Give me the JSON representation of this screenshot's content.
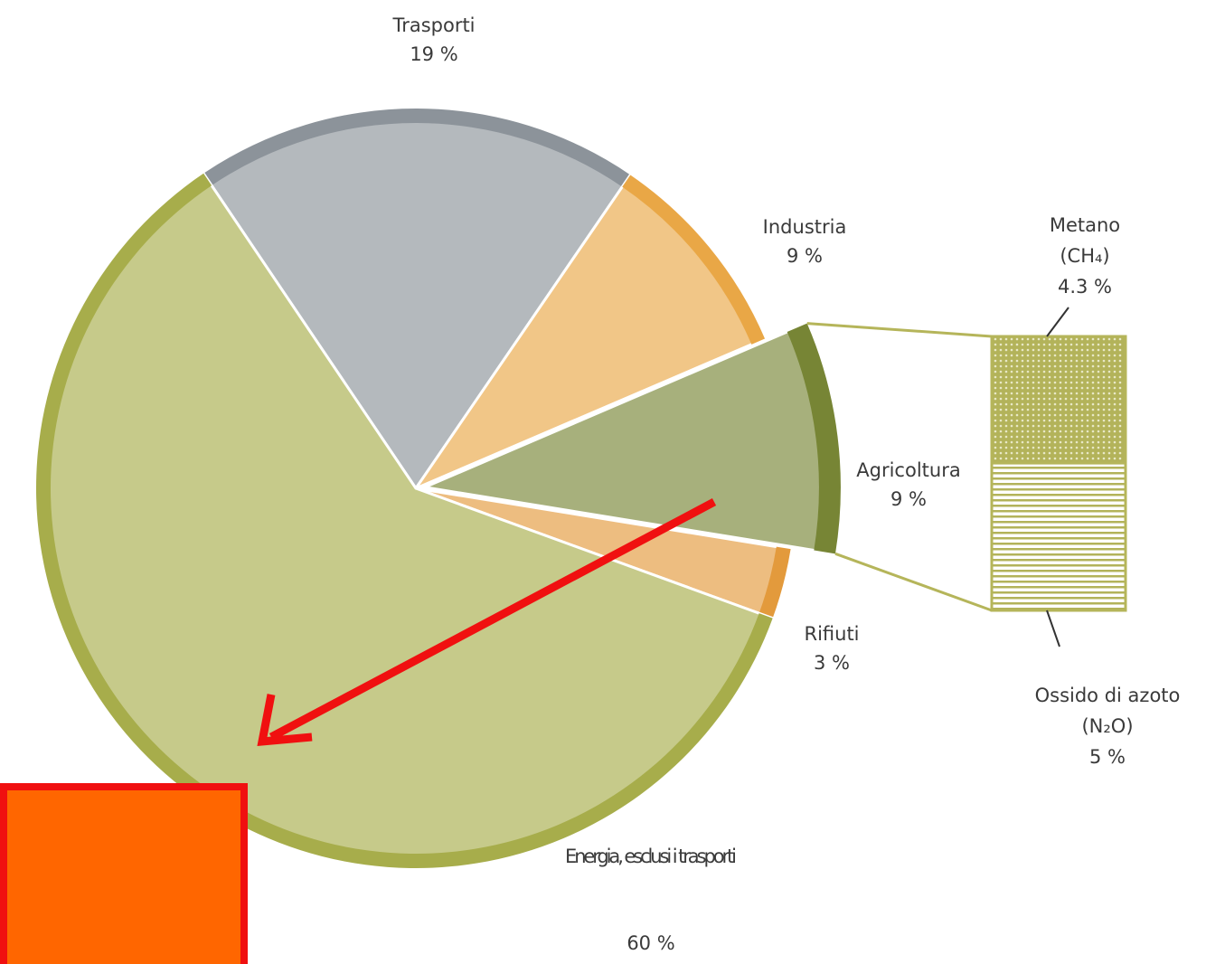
{
  "chart_data": {
    "type": "pie",
    "categories": [
      "Trasporti",
      "Industria",
      "Agricoltura",
      "Rifiuti",
      "Energia, esclusi i trasporti"
    ],
    "values": [
      19,
      9,
      9,
      3,
      60
    ],
    "value_labels": [
      "19 %",
      "9 %",
      "9 %",
      "3 %",
      "60 %"
    ],
    "colors": [
      "#8c939a",
      "#e9a746",
      "#778535",
      "#e39a3c",
      "#a7ad4b"
    ],
    "exploded": "Agricoltura",
    "breakdown": {
      "categories": [
        "Metano",
        "Ossido di azoto"
      ],
      "formulas": [
        "(CH₄)",
        "(N₂O)"
      ],
      "values": [
        4.3,
        5
      ],
      "value_labels": [
        "4.3 %",
        "5 %"
      ],
      "color": "#b5b55a"
    }
  }
}
